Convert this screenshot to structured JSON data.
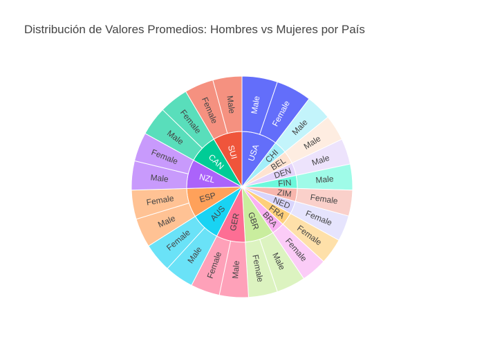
{
  "chart_data": {
    "type": "sunburst",
    "title": "Distribución de Valores Promedios: Hombres vs Mujeres por País",
    "start_angle_deg": 90,
    "direction": "clockwise",
    "countries": [
      {
        "name": "USA",
        "color": "#636efa",
        "children": [
          {
            "name": "Male",
            "value": 5.5
          },
          {
            "name": "Female",
            "value": 5.5
          }
        ]
      },
      {
        "name": "CHI",
        "color": "#a3eef9",
        "children": [
          {
            "name": "Male",
            "value": 4.0
          }
        ]
      },
      {
        "name": "BEL",
        "color": "#fee3d1",
        "children": [
          {
            "name": "Male",
            "value": 4.0
          }
        ]
      },
      {
        "name": "DEN",
        "color": "#e4d4fb",
        "children": [
          {
            "name": "Male",
            "value": 4.0
          }
        ]
      },
      {
        "name": "FIN",
        "color": "#6cf9dc",
        "children": [
          {
            "name": "Male",
            "value": 4.0
          }
        ]
      },
      {
        "name": "ZIM",
        "color": "#f8b6ad",
        "children": [
          {
            "name": "Female",
            "value": 4.0
          }
        ]
      },
      {
        "name": "NED",
        "color": "#d9d5fc",
        "children": [
          {
            "name": "Female",
            "value": 4.0
          }
        ]
      },
      {
        "name": "FRA",
        "color": "#fecf7a",
        "children": [
          {
            "name": "Female",
            "value": 4.0
          }
        ]
      },
      {
        "name": "BRA",
        "color": "#f9b0f2",
        "children": [
          {
            "name": "Female",
            "value": 4.0
          }
        ]
      },
      {
        "name": "GBR",
        "color": "#c9ed9e",
        "children": [
          {
            "name": "Male",
            "value": 4.5
          },
          {
            "name": "Female",
            "value": 4.5
          }
        ]
      },
      {
        "name": "GER",
        "color": "#fd6e94",
        "children": [
          {
            "name": "Male",
            "value": 4.5
          },
          {
            "name": "Female",
            "value": 4.5
          }
        ]
      },
      {
        "name": "AUS",
        "color": "#19d3f3",
        "children": [
          {
            "name": "Male",
            "value": 4.5
          },
          {
            "name": "Female",
            "value": 4.5
          }
        ]
      },
      {
        "name": "ESP",
        "color": "#ffa15a",
        "children": [
          {
            "name": "Male",
            "value": 4.5
          },
          {
            "name": "Female",
            "value": 4.5
          }
        ]
      },
      {
        "name": "NZL",
        "color": "#ab63fa",
        "children": [
          {
            "name": "Male",
            "value": 4.5
          },
          {
            "name": "Female",
            "value": 4.5
          }
        ]
      },
      {
        "name": "CAN",
        "color": "#00cc96",
        "children": [
          {
            "name": "Male",
            "value": 4.5
          },
          {
            "name": "Female",
            "value": 4.5
          }
        ]
      },
      {
        "name": "SUI",
        "color": "#ef553b",
        "children": [
          {
            "name": "Female",
            "value": 4.5
          },
          {
            "name": "Male",
            "value": 4.5
          }
        ]
      }
    ]
  }
}
